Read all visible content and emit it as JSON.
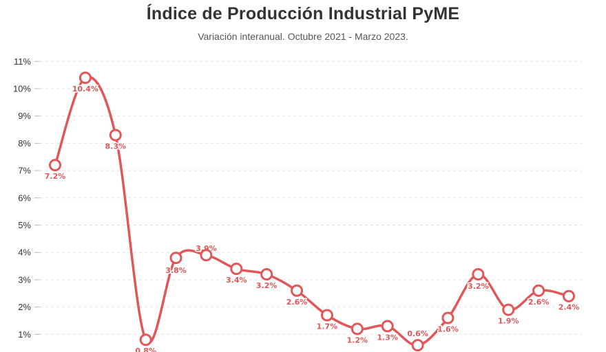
{
  "header": {
    "title": "Índice de Producción Industrial PyME",
    "subtitle": "Variación interanual. Octubre 2021 - Marzo 2023."
  },
  "chart_data": {
    "type": "line",
    "title": "Índice de Producción Industrial PyME",
    "subtitle": "Variación interanual. Octubre 2021 - Marzo 2023.",
    "xlabel": "",
    "ylabel": "",
    "ylim": [
      0,
      11
    ],
    "y_ticks": [
      1,
      2,
      3,
      4,
      5,
      6,
      7,
      8,
      9,
      10,
      11
    ],
    "y_tick_labels": [
      "1%",
      "2%",
      "3%",
      "4%",
      "5%",
      "6%",
      "7%",
      "8%",
      "9%",
      "10%",
      "11%"
    ],
    "grid": true,
    "legend": "none",
    "smooth": true,
    "color": "#e15759",
    "series": [
      {
        "values": [
          7.2,
          10.4,
          8.3,
          0.8,
          3.8,
          3.9,
          3.4,
          3.2,
          2.6,
          1.7,
          1.2,
          1.3,
          0.6,
          1.6,
          3.2,
          1.9,
          2.6,
          2.4
        ],
        "labels": [
          "7.2%",
          "10.4%",
          "8.3%",
          "0.8%",
          "3.8%",
          "3.9%",
          "3.4%",
          "3.2%",
          "2.6%",
          "1.7%",
          "1.2%",
          "1.3%",
          "0.6%",
          "1.6%",
          "3.2%",
          "1.9%",
          "2.6%",
          "2.4%"
        ]
      }
    ]
  }
}
